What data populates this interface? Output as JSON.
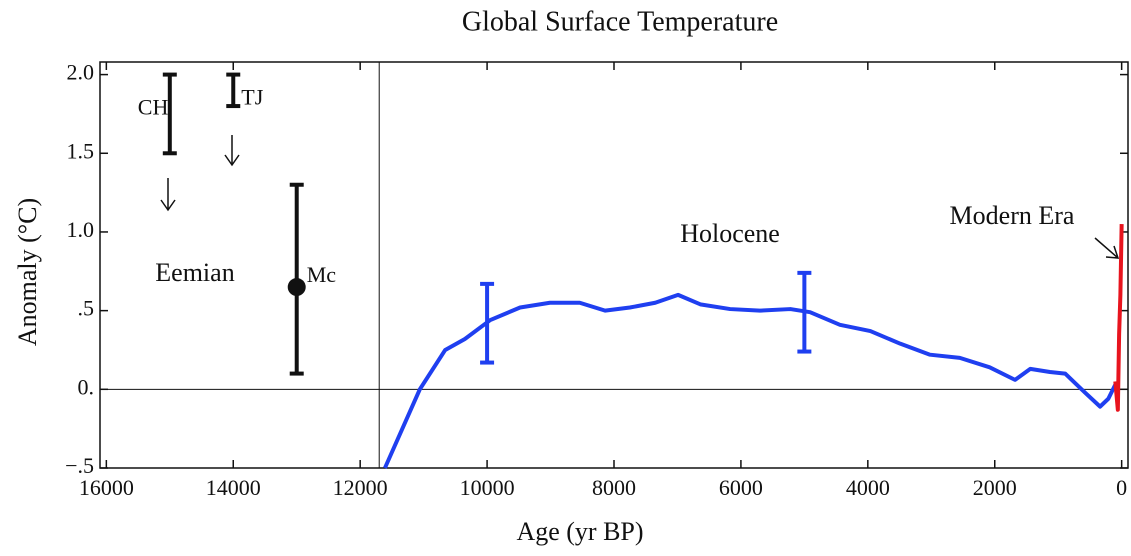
{
  "chart_data": {
    "type": "line",
    "title": "Global Surface Temperature",
    "x_label": "Age (yr BP)",
    "y_label": "Anomaly (°C)",
    "xlim": [
      16100,
      -100
    ],
    "ylim": [
      -0.5,
      2.08
    ],
    "xticks": [
      16000,
      14000,
      12000,
      10000,
      8000,
      6000,
      4000,
      2000,
      0
    ],
    "yticks": [
      {
        "value": -0.5,
        "label": "−.5"
      },
      {
        "value": 0,
        "label": "0."
      },
      {
        "value": 0.5,
        "label": ".5"
      },
      {
        "value": 1,
        "label": "1.0"
      },
      1.5,
      {
        "value": 2,
        "label": "2.0"
      }
    ],
    "vline": 11700,
    "hline": 0,
    "series": [
      {
        "color": "#1f3ff0",
        "x": [
          11610,
          11060,
          10660,
          10350,
          9950,
          9480,
          9010,
          8540,
          8140,
          7750,
          7350,
          6990,
          6640,
          6170,
          5700,
          5220,
          4910,
          4440,
          3960,
          3490,
          3020,
          2550,
          2080,
          1680,
          1440,
          1130,
          890,
          580,
          340,
          210,
          100
        ],
        "values": [
          -0.5,
          0,
          0.25,
          0.32,
          0.44,
          0.52,
          0.55,
          0.55,
          0.5,
          0.52,
          0.55,
          0.6,
          0.54,
          0.51,
          0.5,
          0.51,
          0.49,
          0.41,
          0.37,
          0.29,
          0.22,
          0.2,
          0.14,
          0.06,
          0.13,
          0.11,
          0.1,
          -0.02,
          -0.11,
          -0.06,
          0.03
        ]
      },
      {
        "color": "#e8141e",
        "x": [
          100,
          60,
          40,
          20,
          0
        ],
        "values": [
          0.05,
          -0.13,
          0.35,
          0.6,
          1.05
        ]
      }
    ],
    "error_bars": [
      {
        "label": "CH",
        "x": 15000,
        "low": 1.5,
        "high": 2.0,
        "color": "#111111"
      },
      {
        "label": "TJ",
        "x": 14000,
        "low": 1.8,
        "high": 2.0,
        "color": "#111111"
      },
      {
        "label": "Mc",
        "x": 13000,
        "value": 0.65,
        "low": 0.1,
        "high": 1.3,
        "color": "#111111"
      },
      {
        "x": 10000,
        "low": 0.17,
        "high": 0.67,
        "color": "#1f3ff0"
      },
      {
        "x": 5000,
        "low": 0.24,
        "high": 0.74,
        "color": "#1f3ff0"
      }
    ],
    "annotations": [
      "Eemian",
      "Holocene",
      "Modern Era"
    ]
  }
}
